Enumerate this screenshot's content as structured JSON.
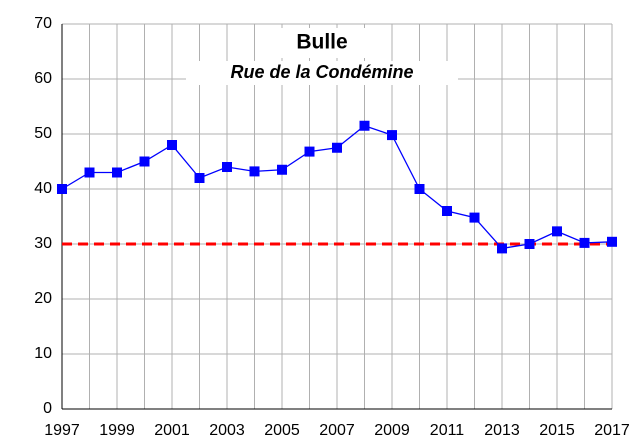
{
  "chart_data": {
    "type": "line",
    "title": "Bulle",
    "subtitle": "Rue de la Condémine",
    "x": [
      1997,
      1998,
      1999,
      2000,
      2001,
      2002,
      2003,
      2004,
      2005,
      2006,
      2007,
      2008,
      2009,
      2010,
      2011,
      2012,
      2013,
      2014,
      2015,
      2016,
      2017
    ],
    "values": [
      40,
      43,
      43,
      45,
      48,
      42,
      44,
      43.2,
      43.5,
      46.8,
      47.5,
      51.5,
      49.8,
      40,
      36,
      34.8,
      29.2,
      30,
      32.3,
      30.2,
      30.4
    ],
    "color": "#0000ff",
    "threshold": {
      "value": 30,
      "color": "#ff0000"
    },
    "xlim": [
      1997,
      2017
    ],
    "xticks": [
      1997,
      1999,
      2001,
      2003,
      2005,
      2007,
      2009,
      2011,
      2013,
      2015,
      2017
    ],
    "ylim": [
      0,
      70
    ],
    "yticks": [
      0,
      10,
      20,
      30,
      40,
      50,
      60,
      70
    ],
    "grid": true
  }
}
